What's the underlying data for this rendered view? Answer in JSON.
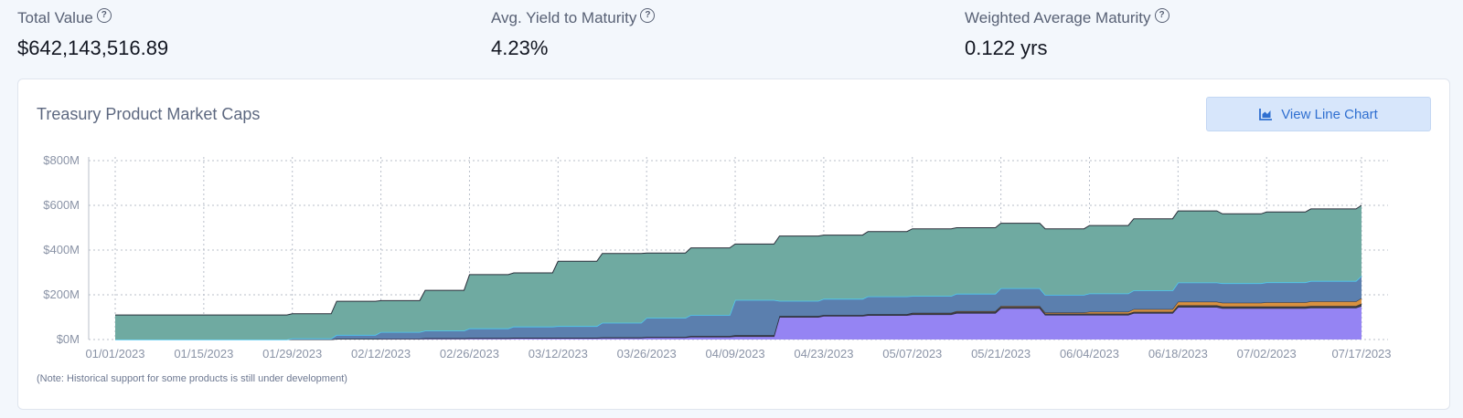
{
  "stats": [
    {
      "label": "Total Value",
      "value": "$642,143,516.89"
    },
    {
      "label": "Avg. Yield to Maturity",
      "value": "4.23%"
    },
    {
      "label": "Weighted Average Maturity",
      "value": "0.122 yrs"
    }
  ],
  "help_icon": "question-circle-icon",
  "card": {
    "title": "Treasury Product Market Caps",
    "view_button_label": "View Line Chart",
    "view_button_icon": "area-chart-icon",
    "note": "(Note: Historical support for some products is still under development)"
  },
  "chart_data": {
    "type": "area",
    "stacked": true,
    "title": "Treasury Product Market Caps",
    "xlabel": "",
    "ylabel": "",
    "ylim": [
      0,
      800
    ],
    "y_unit": "M",
    "y_ticks": [
      "$0M",
      "$200M",
      "$400M",
      "$600M",
      "$800M"
    ],
    "x_ticks": [
      "01/01/2023",
      "01/15/2023",
      "01/29/2023",
      "02/12/2023",
      "02/26/2023",
      "03/12/2023",
      "03/26/2023",
      "04/09/2023",
      "04/23/2023",
      "05/07/2023",
      "05/21/2023",
      "06/04/2023",
      "06/18/2023",
      "07/02/2023",
      "07/17/2023"
    ],
    "grid": true,
    "legend": "none",
    "x": [
      "01/01/2023",
      "01/15/2023",
      "01/29/2023",
      "02/05/2023",
      "02/12/2023",
      "02/19/2023",
      "02/26/2023",
      "03/05/2023",
      "03/12/2023",
      "03/19/2023",
      "03/26/2023",
      "04/02/2023",
      "04/09/2023",
      "04/16/2023",
      "04/23/2023",
      "04/30/2023",
      "05/07/2023",
      "05/14/2023",
      "05/21/2023",
      "05/28/2023",
      "06/04/2023",
      "06/11/2023",
      "06/18/2023",
      "06/25/2023",
      "07/02/2023",
      "07/09/2023",
      "07/17/2023"
    ],
    "series": [
      {
        "color": "#9584f3",
        "values": [
          0,
          0,
          0,
          2,
          3,
          4,
          5,
          6,
          6,
          7,
          9,
          12,
          14,
          100,
          105,
          108,
          112,
          118,
          140,
          110,
          110,
          118,
          145,
          140,
          140,
          142,
          150
        ]
      },
      {
        "color": "#3d3d44",
        "values": [
          0,
          0,
          0,
          1,
          1,
          2,
          2,
          2,
          2,
          3,
          3,
          4,
          5,
          5,
          5,
          5,
          5,
          6,
          6,
          6,
          6,
          6,
          8,
          8,
          8,
          8,
          10
        ]
      },
      {
        "color": "#d9913f",
        "values": [
          0,
          0,
          0,
          0,
          0,
          0,
          0,
          0,
          0,
          0,
          0,
          0,
          0,
          0,
          0,
          0,
          2,
          3,
          4,
          5,
          8,
          12,
          16,
          16,
          18,
          20,
          25
        ]
      },
      {
        "color": "#5b7fae",
        "values": [
          0,
          0,
          5,
          18,
          30,
          34,
          43,
          50,
          52,
          65,
          85,
          94,
          158,
          68,
          72,
          80,
          76,
          78,
          80,
          79,
          82,
          84,
          86,
          88,
          90,
          92,
          100
        ]
      },
      {
        "color": "#6faaa1",
        "values": [
          110,
          110,
          110,
          150,
          140,
          180,
          240,
          240,
          290,
          310,
          290,
          300,
          250,
          290,
          285,
          290,
          300,
          295,
          290,
          295,
          304,
          320,
          320,
          310,
          314,
          322,
          315
        ]
      }
    ]
  }
}
